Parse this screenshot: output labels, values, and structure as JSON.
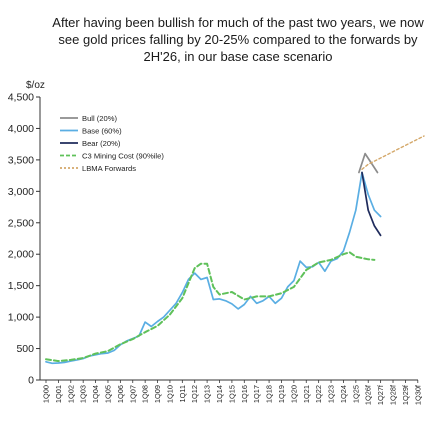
{
  "chart_data": {
    "type": "line",
    "title": "After having been bullish for much of the past two years, we now see gold prices falling by 20-25% compared to the forwards by 2H'26, in our base case scenario",
    "ylabel": "$/oz",
    "ylim": [
      0,
      4500
    ],
    "yticks": [
      "0",
      "500",
      "1,000",
      "1,500",
      "2,000",
      "2,500",
      "3,000",
      "3,500",
      "4,000",
      "4,500"
    ],
    "ytick_values": [
      0,
      500,
      1000,
      1500,
      2000,
      2500,
      3000,
      3500,
      4000,
      4500
    ],
    "categories": [
      "1Q00",
      "1Q01",
      "1Q02",
      "1Q03",
      "1Q04",
      "1Q05",
      "1Q06",
      "1Q07",
      "1Q08",
      "1Q09",
      "1Q10",
      "1Q11",
      "1Q12",
      "1Q13",
      "1Q14",
      "1Q15",
      "1Q16",
      "1Q17",
      "1Q18",
      "1Q19",
      "1Q20",
      "1Q21",
      "1Q22",
      "1Q23",
      "1Q24",
      "1Q25",
      "1Q26f",
      "1Q27f",
      "1Q28f",
      "1Q29f",
      "1Q30f"
    ],
    "grid": false,
    "legend_position": "upper-left",
    "series": [
      {
        "name": "Bull (20%)",
        "color": "#8c8c8c",
        "dash": "solid",
        "points": [
          [
            25.25,
            3300
          ],
          [
            25.75,
            3600
          ],
          [
            26.25,
            3450
          ],
          [
            26.75,
            3300
          ]
        ]
      },
      {
        "name": "Base (60%)",
        "color": "#5aaee3",
        "dash": "solid",
        "points": [
          [
            0,
            290
          ],
          [
            0.5,
            265
          ],
          [
            1,
            270
          ],
          [
            1.5,
            280
          ],
          [
            2,
            300
          ],
          [
            2.5,
            320
          ],
          [
            3,
            340
          ],
          [
            3.5,
            380
          ],
          [
            4,
            400
          ],
          [
            4.5,
            420
          ],
          [
            5,
            430
          ],
          [
            5.5,
            470
          ],
          [
            6,
            560
          ],
          [
            6.5,
            620
          ],
          [
            7,
            660
          ],
          [
            7.5,
            700
          ],
          [
            8,
            920
          ],
          [
            8.5,
            850
          ],
          [
            9,
            930
          ],
          [
            9.5,
            1000
          ],
          [
            10,
            1110
          ],
          [
            10.5,
            1220
          ],
          [
            11,
            1390
          ],
          [
            11.5,
            1600
          ],
          [
            12,
            1700
          ],
          [
            12.5,
            1600
          ],
          [
            13,
            1630
          ],
          [
            13.5,
            1280
          ],
          [
            14,
            1290
          ],
          [
            14.5,
            1260
          ],
          [
            15,
            1210
          ],
          [
            15.5,
            1130
          ],
          [
            16,
            1200
          ],
          [
            16.5,
            1330
          ],
          [
            17,
            1220
          ],
          [
            17.5,
            1260
          ],
          [
            18,
            1330
          ],
          [
            18.5,
            1220
          ],
          [
            19,
            1300
          ],
          [
            19.5,
            1480
          ],
          [
            20,
            1580
          ],
          [
            20.5,
            1890
          ],
          [
            21,
            1790
          ],
          [
            21.5,
            1800
          ],
          [
            22,
            1870
          ],
          [
            22.5,
            1730
          ],
          [
            23,
            1890
          ],
          [
            23.5,
            1930
          ],
          [
            24,
            2050
          ],
          [
            24.5,
            2350
          ],
          [
            25,
            2700
          ],
          [
            25.5,
            3300
          ],
          [
            26,
            2950
          ],
          [
            26.5,
            2700
          ],
          [
            27,
            2600
          ]
        ]
      },
      {
        "name": "Bear (20%)",
        "color": "#1f2b5c",
        "dash": "solid",
        "points": [
          [
            25.5,
            3300
          ],
          [
            26,
            2700
          ],
          [
            26.5,
            2450
          ],
          [
            27,
            2300
          ]
        ]
      },
      {
        "name": "C3 Mining Cost (90%ile)",
        "color": "#5fc15a",
        "dash": "dashed",
        "points": [
          [
            0,
            330
          ],
          [
            1,
            300
          ],
          [
            2,
            320
          ],
          [
            3,
            350
          ],
          [
            4,
            420
          ],
          [
            5,
            460
          ],
          [
            6,
            570
          ],
          [
            7,
            650
          ],
          [
            8,
            760
          ],
          [
            9,
            860
          ],
          [
            10,
            1040
          ],
          [
            11,
            1300
          ],
          [
            12,
            1780
          ],
          [
            12.5,
            1850
          ],
          [
            13,
            1850
          ],
          [
            13.5,
            1480
          ],
          [
            14,
            1360
          ],
          [
            15,
            1400
          ],
          [
            16,
            1280
          ],
          [
            17,
            1330
          ],
          [
            18,
            1330
          ],
          [
            19,
            1380
          ],
          [
            20,
            1480
          ],
          [
            21,
            1750
          ],
          [
            22,
            1870
          ],
          [
            23,
            1910
          ],
          [
            24,
            2000
          ],
          [
            24.5,
            2030
          ],
          [
            25,
            1960
          ],
          [
            26,
            1920
          ],
          [
            26.5,
            1910
          ]
        ]
      },
      {
        "name": "LBMA Forwards",
        "color": "#d4a86a",
        "dash": "dotted",
        "points": [
          [
            25.5,
            3350
          ],
          [
            26,
            3430
          ],
          [
            27,
            3530
          ],
          [
            28,
            3630
          ],
          [
            29,
            3730
          ],
          [
            30,
            3830
          ],
          [
            30.5,
            3880
          ]
        ]
      }
    ]
  }
}
